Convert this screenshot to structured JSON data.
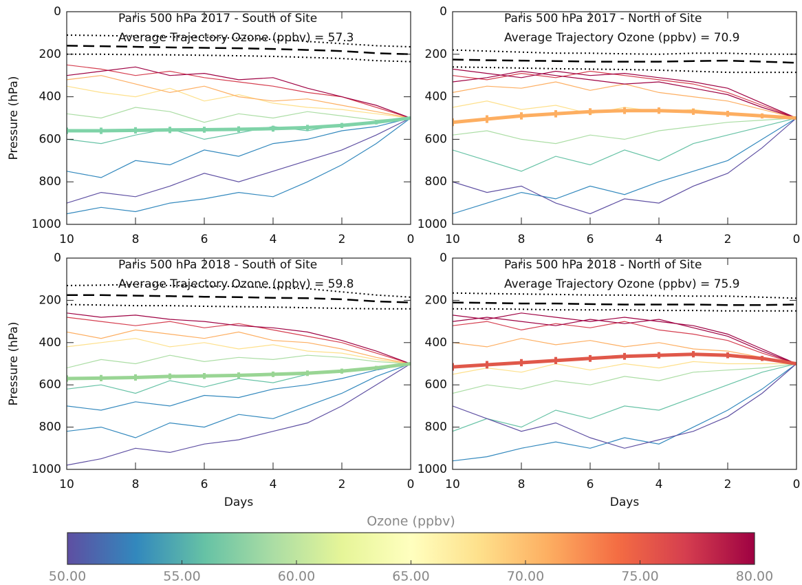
{
  "chart_data": [
    {
      "type": "line",
      "title": "Paris 500 hPa 2017 - South of Site",
      "subtitle": "Average Trajectory Ozone (ppbv) = 57.3",
      "y_label": "Pressure (hPa)",
      "x": [
        10,
        9,
        8,
        7,
        6,
        5,
        4,
        3,
        2,
        1,
        0
      ],
      "xlim": [
        10,
        0
      ],
      "xticks": [
        10,
        8,
        6,
        4,
        2,
        0
      ],
      "ylim": [
        1000,
        0
      ],
      "yticks": [
        0,
        200,
        400,
        600,
        800,
        1000
      ],
      "series": [
        {
          "color": "#5e4fa2",
          "values": [
            900,
            850,
            870,
            820,
            760,
            800,
            750,
            700,
            650,
            580,
            500
          ]
        },
        {
          "color": "#3288bd",
          "values": [
            750,
            780,
            700,
            720,
            650,
            680,
            620,
            600,
            560,
            540,
            500
          ]
        },
        {
          "color": "#3288bd",
          "values": [
            950,
            920,
            940,
            900,
            880,
            850,
            870,
            800,
            720,
            620,
            500
          ]
        },
        {
          "color": "#66c2a5",
          "values": [
            600,
            620,
            580,
            550,
            600,
            570,
            540,
            560,
            530,
            520,
            500
          ]
        },
        {
          "color": "#abdda4",
          "values": [
            480,
            500,
            450,
            470,
            520,
            480,
            500,
            470,
            490,
            510,
            500
          ]
        },
        {
          "color": "#fee08b",
          "values": [
            350,
            380,
            400,
            360,
            420,
            390,
            430,
            450,
            460,
            480,
            500
          ]
        },
        {
          "color": "#fdae61",
          "values": [
            320,
            300,
            340,
            380,
            350,
            400,
            420,
            410,
            440,
            470,
            500
          ]
        },
        {
          "color": "#d53e4f",
          "values": [
            250,
            270,
            300,
            280,
            310,
            330,
            350,
            380,
            400,
            450,
            500
          ]
        },
        {
          "color": "#9e0142",
          "values": [
            300,
            280,
            260,
            300,
            290,
            320,
            310,
            360,
            400,
            440,
            500
          ]
        },
        {
          "color": "#7fd3a8",
          "style": "mean",
          "values": [
            560,
            560,
            558,
            556,
            555,
            553,
            550,
            545,
            535,
            520,
            500
          ],
          "errors": [
            15,
            15,
            15,
            15,
            14,
            14,
            14,
            13,
            12,
            10,
            5
          ]
        },
        {
          "color": "#000000",
          "style": "dotted",
          "values": [
            110,
            112,
            115,
            118,
            120,
            125,
            130,
            140,
            150,
            160,
            165
          ]
        },
        {
          "color": "#000000",
          "style": "dashed",
          "values": [
            160,
            162,
            165,
            168,
            170,
            172,
            175,
            180,
            185,
            195,
            200
          ]
        },
        {
          "color": "#000000",
          "style": "dotted",
          "values": [
            200,
            200,
            202,
            203,
            205,
            207,
            210,
            215,
            220,
            230,
            235
          ]
        }
      ]
    },
    {
      "type": "line",
      "title": "Paris 500 hPa 2017 - North of Site",
      "subtitle": "Average Trajectory Ozone (ppbv) = 70.9",
      "x": [
        10,
        9,
        8,
        7,
        6,
        5,
        4,
        3,
        2,
        1,
        0
      ],
      "xlim": [
        10,
        0
      ],
      "xticks": [
        10,
        8,
        6,
        4,
        2,
        0
      ],
      "ylim": [
        1000,
        0
      ],
      "yticks": [
        0,
        200,
        400,
        600,
        800,
        1000
      ],
      "series": [
        {
          "color": "#3288bd",
          "values": [
            950,
            900,
            850,
            880,
            820,
            860,
            800,
            750,
            700,
            600,
            500
          ]
        },
        {
          "color": "#66c2a5",
          "values": [
            650,
            700,
            750,
            680,
            720,
            650,
            700,
            620,
            580,
            540,
            500
          ]
        },
        {
          "color": "#abdda4",
          "values": [
            580,
            560,
            600,
            620,
            580,
            600,
            560,
            540,
            520,
            510,
            500
          ]
        },
        {
          "color": "#fee08b",
          "values": [
            450,
            420,
            460,
            440,
            480,
            450,
            470,
            460,
            480,
            490,
            500
          ]
        },
        {
          "color": "#fdae61",
          "values": [
            380,
            350,
            360,
            330,
            370,
            340,
            380,
            400,
            420,
            460,
            500
          ]
        },
        {
          "color": "#d53e4f",
          "values": [
            300,
            320,
            290,
            310,
            280,
            300,
            320,
            340,
            380,
            440,
            500
          ]
        },
        {
          "color": "#9e0142",
          "values": [
            270,
            290,
            310,
            280,
            300,
            290,
            310,
            330,
            360,
            430,
            500
          ]
        },
        {
          "color": "#9e0142",
          "values": [
            330,
            310,
            280,
            300,
            320,
            340,
            330,
            360,
            390,
            450,
            500
          ]
        },
        {
          "color": "#5e4fa2",
          "values": [
            800,
            850,
            820,
            900,
            950,
            880,
            900,
            820,
            760,
            640,
            500
          ]
        },
        {
          "color": "#fdae61",
          "style": "mean",
          "values": [
            520,
            505,
            490,
            480,
            470,
            465,
            465,
            470,
            480,
            490,
            500
          ],
          "errors": [
            18,
            18,
            17,
            17,
            16,
            16,
            15,
            15,
            14,
            12,
            5
          ]
        },
        {
          "color": "#000000",
          "style": "dotted",
          "values": [
            180,
            185,
            190,
            195,
            195,
            198,
            200,
            195,
            195,
            200,
            200
          ]
        },
        {
          "color": "#000000",
          "style": "dashed",
          "values": [
            225,
            228,
            230,
            232,
            235,
            235,
            235,
            232,
            230,
            235,
            240
          ]
        },
        {
          "color": "#000000",
          "style": "dotted",
          "values": [
            260,
            262,
            265,
            268,
            270,
            272,
            275,
            280,
            285,
            285,
            285
          ]
        }
      ]
    },
    {
      "type": "line",
      "title": "Paris 500 hPa 2018 - South of Site",
      "subtitle": "Average Trajectory Ozone (ppbv) = 59.8",
      "y_label": "Pressure (hPa)",
      "x_label": "Days",
      "x": [
        10,
        9,
        8,
        7,
        6,
        5,
        4,
        3,
        2,
        1,
        0
      ],
      "xlim": [
        10,
        0
      ],
      "xticks": [
        10,
        8,
        6,
        4,
        2,
        0
      ],
      "ylim": [
        1000,
        0
      ],
      "yticks": [
        0,
        200,
        400,
        600,
        800,
        1000
      ],
      "series": [
        {
          "color": "#5e4fa2",
          "values": [
            980,
            950,
            900,
            920,
            880,
            860,
            820,
            780,
            700,
            600,
            500
          ]
        },
        {
          "color": "#3288bd",
          "values": [
            820,
            800,
            850,
            780,
            800,
            740,
            760,
            700,
            640,
            560,
            500
          ]
        },
        {
          "color": "#3288bd",
          "values": [
            700,
            720,
            680,
            700,
            650,
            660,
            620,
            600,
            570,
            530,
            500
          ]
        },
        {
          "color": "#66c2a5",
          "values": [
            620,
            600,
            640,
            580,
            610,
            570,
            590,
            550,
            540,
            520,
            500
          ]
        },
        {
          "color": "#abdda4",
          "values": [
            520,
            480,
            500,
            460,
            490,
            470,
            480,
            460,
            470,
            490,
            500
          ]
        },
        {
          "color": "#fee08b",
          "values": [
            420,
            400,
            380,
            420,
            400,
            430,
            410,
            440,
            450,
            480,
            500
          ]
        },
        {
          "color": "#fdae61",
          "values": [
            350,
            380,
            340,
            360,
            380,
            350,
            390,
            400,
            430,
            470,
            500
          ]
        },
        {
          "color": "#d53e4f",
          "values": [
            280,
            300,
            320,
            300,
            330,
            310,
            340,
            370,
            400,
            450,
            500
          ]
        },
        {
          "color": "#9e0142",
          "values": [
            260,
            280,
            270,
            290,
            300,
            320,
            330,
            350,
            390,
            440,
            500
          ]
        },
        {
          "color": "#99d594",
          "style": "mean",
          "values": [
            570,
            568,
            565,
            560,
            558,
            555,
            550,
            545,
            535,
            520,
            500
          ],
          "errors": [
            15,
            15,
            15,
            14,
            14,
            14,
            13,
            13,
            12,
            10,
            5
          ]
        },
        {
          "color": "#000000",
          "style": "dotted",
          "values": [
            130,
            128,
            125,
            130,
            132,
            135,
            140,
            145,
            160,
            175,
            185
          ]
        },
        {
          "color": "#000000",
          "style": "dashed",
          "values": [
            175,
            175,
            178,
            180,
            183,
            185,
            188,
            190,
            195,
            205,
            210
          ]
        },
        {
          "color": "#000000",
          "style": "dotted",
          "values": [
            220,
            222,
            225,
            225,
            228,
            230,
            232,
            235,
            238,
            240,
            240
          ]
        }
      ]
    },
    {
      "type": "line",
      "title": "Paris 500 hPa 2018 - North of Site",
      "subtitle": "Average Trajectory Ozone (ppbv) = 75.9",
      "x_label": "Days",
      "x": [
        10,
        9,
        8,
        7,
        6,
        5,
        4,
        3,
        2,
        1,
        0
      ],
      "xlim": [
        10,
        0
      ],
      "xticks": [
        10,
        8,
        6,
        4,
        2,
        0
      ],
      "ylim": [
        1000,
        0
      ],
      "yticks": [
        0,
        200,
        400,
        600,
        800,
        1000
      ],
      "series": [
        {
          "color": "#3288bd",
          "values": [
            960,
            940,
            900,
            870,
            900,
            850,
            880,
            800,
            720,
            620,
            500
          ]
        },
        {
          "color": "#66c2a5",
          "values": [
            820,
            760,
            800,
            720,
            760,
            700,
            720,
            660,
            600,
            540,
            500
          ]
        },
        {
          "color": "#abdda4",
          "values": [
            640,
            600,
            620,
            580,
            600,
            560,
            580,
            540,
            530,
            520,
            500
          ]
        },
        {
          "color": "#fee08b",
          "values": [
            550,
            520,
            540,
            500,
            530,
            500,
            520,
            490,
            500,
            500,
            500
          ]
        },
        {
          "color": "#fdae61",
          "values": [
            400,
            420,
            380,
            410,
            390,
            420,
            400,
            430,
            440,
            470,
            500
          ]
        },
        {
          "color": "#d53e4f",
          "values": [
            320,
            300,
            340,
            310,
            330,
            300,
            340,
            360,
            390,
            450,
            500
          ]
        },
        {
          "color": "#9e0142",
          "values": [
            270,
            290,
            260,
            280,
            300,
            280,
            300,
            320,
            360,
            430,
            500
          ]
        },
        {
          "color": "#9e0142",
          "values": [
            300,
            280,
            300,
            320,
            290,
            310,
            290,
            330,
            370,
            440,
            500
          ]
        },
        {
          "color": "#5e4fa2",
          "values": [
            700,
            760,
            820,
            780,
            850,
            900,
            860,
            820,
            750,
            640,
            500
          ]
        },
        {
          "color": "#e0584a",
          "style": "mean",
          "values": [
            515,
            505,
            495,
            485,
            475,
            465,
            460,
            455,
            460,
            475,
            500
          ],
          "errors": [
            18,
            18,
            17,
            17,
            16,
            16,
            15,
            15,
            14,
            12,
            5
          ]
        },
        {
          "color": "#000000",
          "style": "dotted",
          "values": [
            165,
            168,
            170,
            172,
            175,
            175,
            178,
            180,
            180,
            185,
            190
          ]
        },
        {
          "color": "#000000",
          "style": "dashed",
          "values": [
            210,
            212,
            215,
            215,
            218,
            220,
            220,
            220,
            222,
            222,
            220
          ]
        },
        {
          "color": "#000000",
          "style": "dotted",
          "values": [
            240,
            240,
            242,
            245,
            245,
            245,
            248,
            248,
            250,
            250,
            250
          ]
        }
      ]
    },
    {
      "type": "colorbar",
      "title": "Ozone (ppbv)",
      "xlim": [
        50,
        80
      ],
      "colors": [
        "#5e4fa2",
        "#3288bd",
        "#66c2a5",
        "#abdda4",
        "#e6f598",
        "#ffffbf",
        "#fee08b",
        "#fdae61",
        "#f46d43",
        "#d53e4f",
        "#9e0142"
      ],
      "xticks": [
        {
          "value": 50,
          "label": "50.00"
        },
        {
          "value": 55,
          "label": "55.00"
        },
        {
          "value": 60,
          "label": "60.00"
        },
        {
          "value": 65,
          "label": "65.00"
        },
        {
          "value": 70,
          "label": "70.00"
        },
        {
          "value": 75,
          "label": "75.00"
        },
        {
          "value": 80,
          "label": "80.00"
        }
      ]
    }
  ]
}
